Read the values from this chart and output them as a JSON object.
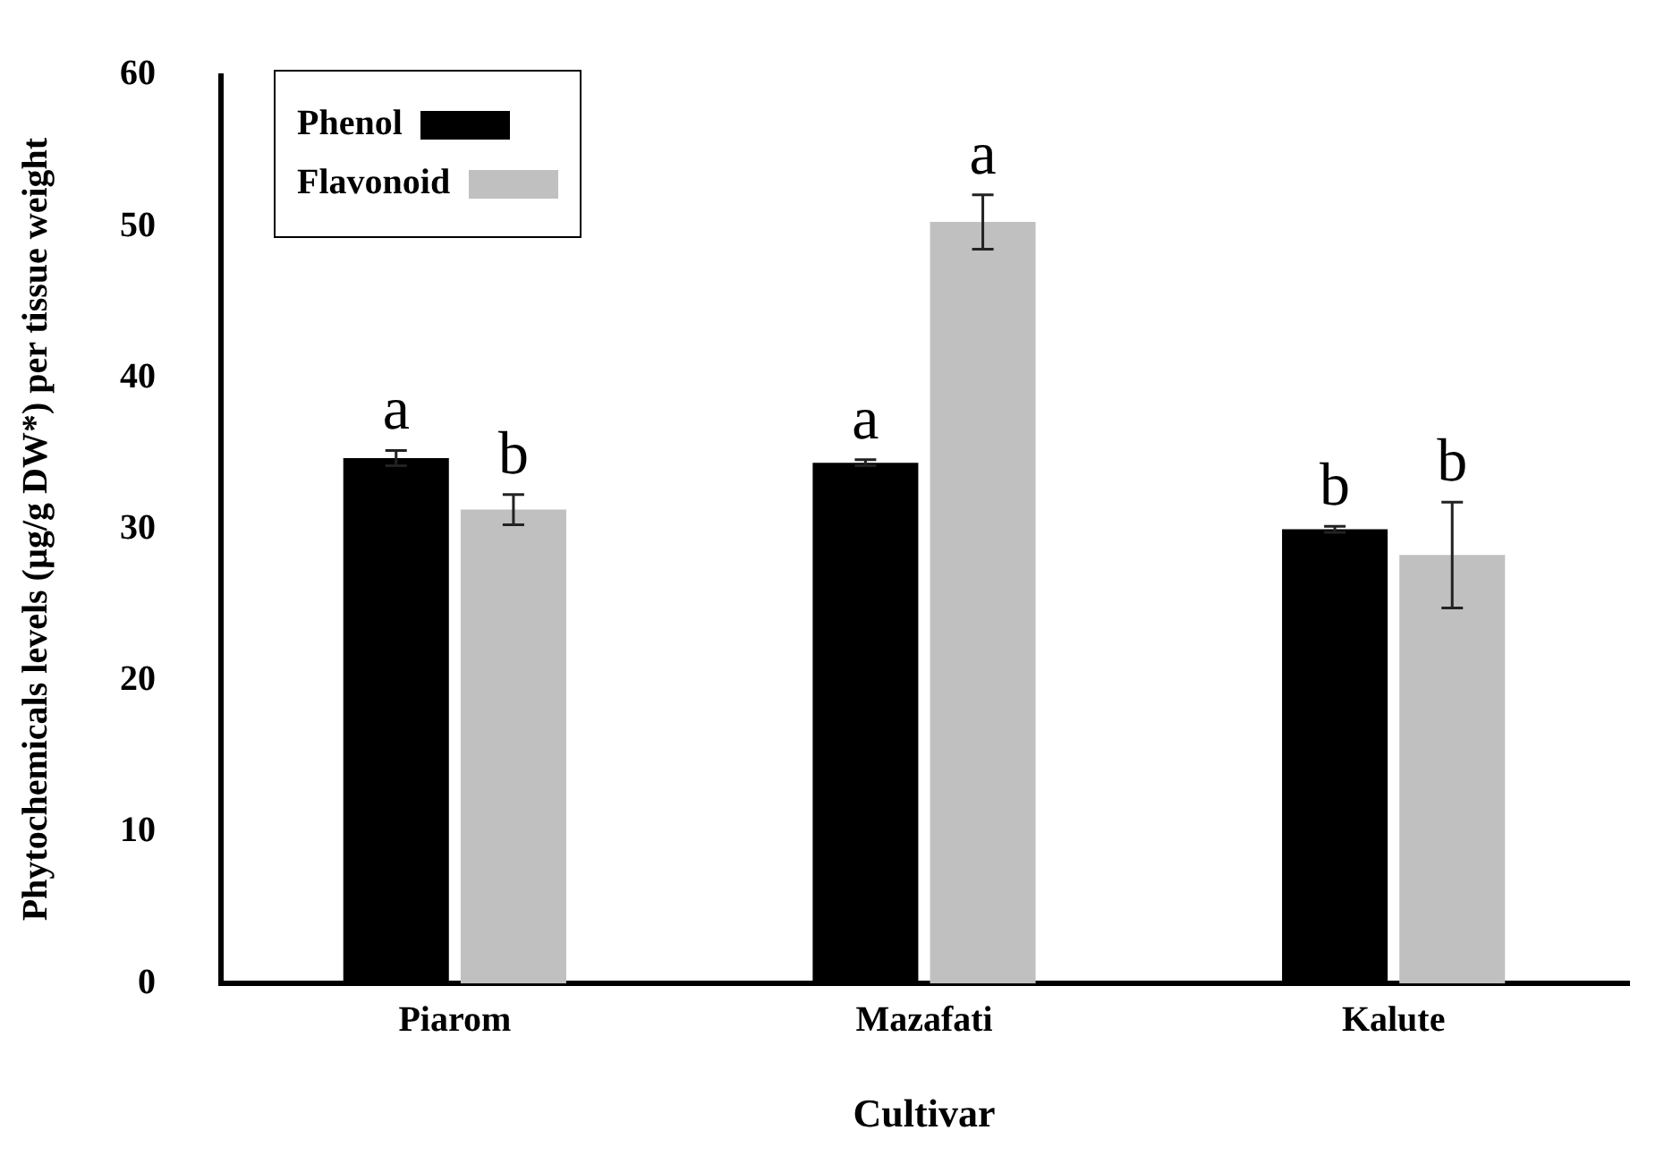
{
  "chart_data": {
    "type": "bar",
    "xlabel": "Cultivar",
    "ylabel": "Phytochemicals levels (µg/g DW*) per tissue weight",
    "categories": [
      "Piarom",
      "Mazafati",
      "Kalute"
    ],
    "series": [
      {
        "name": "Phenol",
        "color": "#000000",
        "values": [
          34.7,
          34.4,
          30.0
        ],
        "errors": [
          0.5,
          0.2,
          0.2
        ],
        "value_labels": [
          "a",
          "a",
          "b"
        ]
      },
      {
        "name": "Flavonoid",
        "color": "#c0c0c0",
        "values": [
          31.3,
          50.3,
          28.3
        ],
        "errors": [
          1.0,
          1.8,
          3.5
        ],
        "value_labels": [
          "b",
          "a",
          "b"
        ]
      }
    ],
    "ylim": [
      0,
      60
    ],
    "yticks": [
      0,
      10,
      20,
      30,
      40,
      50,
      60
    ],
    "legend": "top left",
    "grid": false
  }
}
